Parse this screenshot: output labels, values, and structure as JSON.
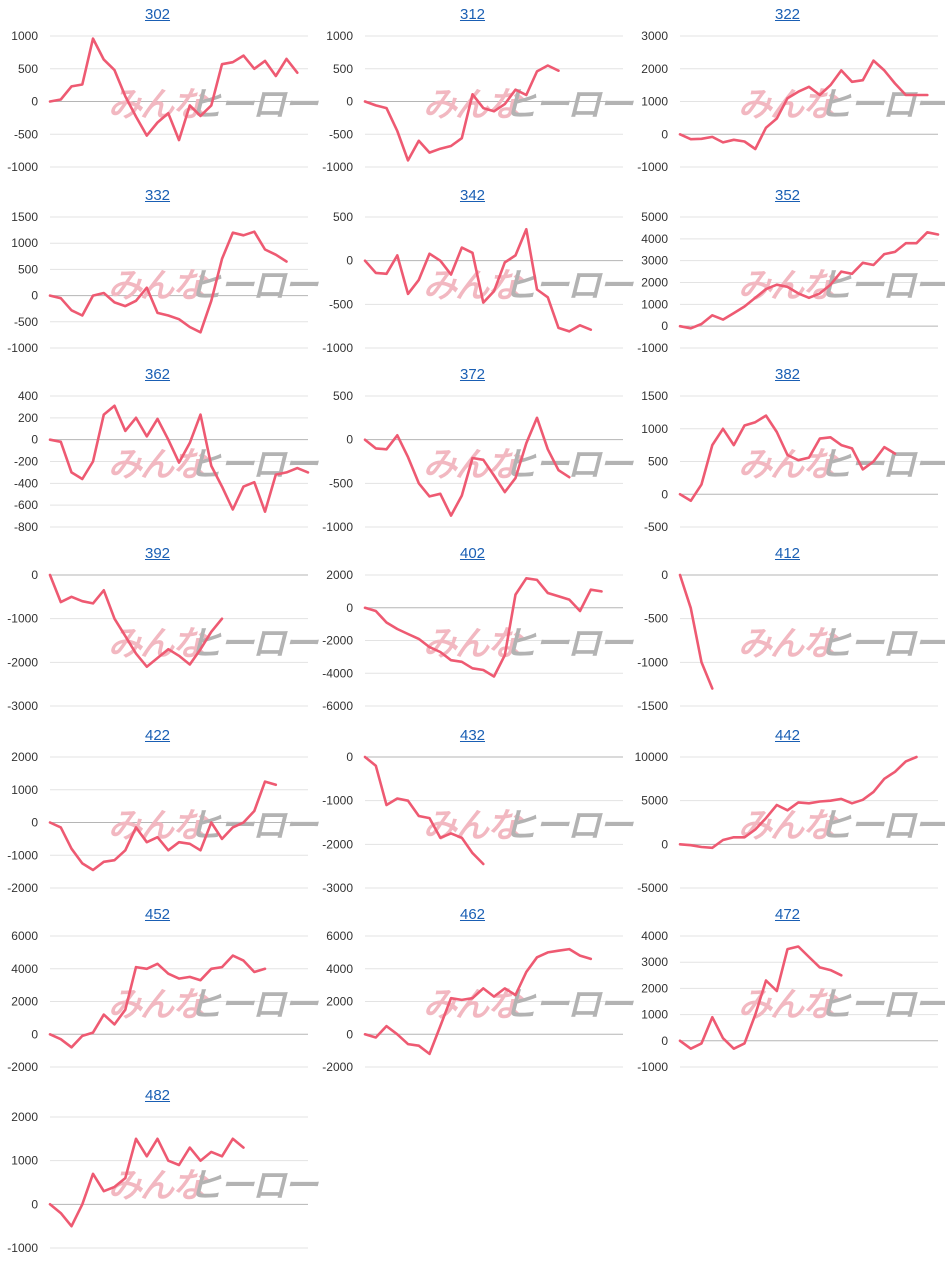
{
  "watermark": {
    "left": "みんな",
    "right": "ヒーロー"
  },
  "style": {
    "line_color": "#ee5a72",
    "grid_color": "#e3e3e3",
    "zero_color": "#b5b5b5",
    "title_color": "#1a5fb4"
  },
  "chart_data": [
    {
      "type": "line",
      "title": "302",
      "yticks": [
        1000,
        500,
        0,
        -500,
        -1000
      ],
      "ylim": [
        -1000,
        1000
      ],
      "x": [
        0,
        1,
        2,
        3,
        4,
        5,
        6,
        7,
        8,
        9,
        10,
        11,
        12,
        13,
        14,
        15,
        16,
        17,
        18,
        19,
        20,
        21,
        22,
        23,
        24
      ],
      "series": [
        {
          "values": [
            0,
            30,
            230,
            260,
            960,
            640,
            480,
            80,
            -230,
            -520,
            -320,
            -180,
            -590,
            -60,
            -220,
            -60,
            570,
            600,
            700,
            500,
            620,
            390,
            650,
            440,
            null
          ]
        }
      ]
    },
    {
      "type": "line",
      "title": "312",
      "yticks": [
        1000,
        500,
        0,
        -500,
        -1000
      ],
      "ylim": [
        -1000,
        1000
      ],
      "x": [
        0,
        1,
        2,
        3,
        4,
        5,
        6,
        7,
        8,
        9,
        10,
        11,
        12,
        13,
        14,
        15,
        16,
        17,
        18,
        19,
        20,
        21,
        22,
        23,
        24
      ],
      "series": [
        {
          "values": [
            0,
            -60,
            -100,
            -450,
            -900,
            -600,
            -780,
            -720,
            -680,
            -560,
            110,
            -100,
            -150,
            -40,
            180,
            100,
            460,
            550,
            470,
            null,
            null,
            null,
            null,
            null,
            null
          ]
        }
      ]
    },
    {
      "type": "line",
      "title": "322",
      "yticks": [
        3000,
        2000,
        1000,
        0,
        -1000
      ],
      "ylim": [
        -1000,
        3000
      ],
      "x": [
        0,
        1,
        2,
        3,
        4,
        5,
        6,
        7,
        8,
        9,
        10,
        11,
        12,
        13,
        14,
        15,
        16,
        17,
        18,
        19,
        20,
        21,
        22,
        23,
        24
      ],
      "series": [
        {
          "values": [
            0,
            -150,
            -140,
            -80,
            -250,
            -170,
            -220,
            -450,
            200,
            480,
            1100,
            1300,
            1450,
            1200,
            1500,
            1950,
            1600,
            1650,
            2250,
            1950,
            1550,
            1200,
            1200,
            1200,
            null
          ]
        }
      ]
    },
    {
      "type": "line",
      "title": "332",
      "yticks": [
        1500,
        1000,
        500,
        0,
        -500,
        -1000
      ],
      "ylim": [
        -1000,
        1500
      ],
      "x": [
        0,
        1,
        2,
        3,
        4,
        5,
        6,
        7,
        8,
        9,
        10,
        11,
        12,
        13,
        14,
        15,
        16,
        17,
        18,
        19,
        20,
        21,
        22,
        23,
        24
      ],
      "series": [
        {
          "values": [
            0,
            -50,
            -280,
            -380,
            0,
            50,
            -130,
            -200,
            -100,
            150,
            -330,
            -380,
            -450,
            -600,
            -700,
            -100,
            700,
            1200,
            1150,
            1220,
            880,
            780,
            650,
            null,
            null
          ]
        }
      ]
    },
    {
      "type": "line",
      "title": "342",
      "yticks": [
        500,
        0,
        -500,
        -1000
      ],
      "ylim": [
        -1000,
        500
      ],
      "x": [
        0,
        1,
        2,
        3,
        4,
        5,
        6,
        7,
        8,
        9,
        10,
        11,
        12,
        13,
        14,
        15,
        16,
        17,
        18,
        19,
        20,
        21,
        22,
        23,
        24
      ],
      "series": [
        {
          "values": [
            0,
            -140,
            -150,
            60,
            -380,
            -220,
            80,
            0,
            -160,
            150,
            90,
            -480,
            -350,
            -20,
            60,
            360,
            -330,
            -420,
            -770,
            -810,
            -740,
            -790,
            null,
            null,
            null
          ]
        }
      ]
    },
    {
      "type": "line",
      "title": "352",
      "yticks": [
        5000,
        4000,
        3000,
        2000,
        1000,
        0,
        -1000
      ],
      "ylim": [
        -1000,
        5000
      ],
      "x": [
        0,
        1,
        2,
        3,
        4,
        5,
        6,
        7,
        8,
        9,
        10,
        11,
        12,
        13,
        14,
        15,
        16,
        17,
        18,
        19,
        20,
        21,
        22,
        23,
        24
      ],
      "series": [
        {
          "values": [
            0,
            -100,
            100,
            500,
            300,
            600,
            900,
            1300,
            1700,
            1900,
            1800,
            1500,
            1300,
            1500,
            1900,
            2500,
            2400,
            2900,
            2800,
            3300,
            3400,
            3800,
            3800,
            4300,
            4200
          ]
        }
      ]
    },
    {
      "type": "line",
      "title": "362",
      "yticks": [
        400,
        200,
        0,
        -200,
        -400,
        -600,
        -800
      ],
      "ylim": [
        -800,
        400
      ],
      "x": [
        0,
        1,
        2,
        3,
        4,
        5,
        6,
        7,
        8,
        9,
        10,
        11,
        12,
        13,
        14,
        15,
        16,
        17,
        18,
        19,
        20,
        21,
        22,
        23,
        24
      ],
      "series": [
        {
          "values": [
            0,
            -20,
            -300,
            -360,
            -200,
            230,
            310,
            80,
            200,
            30,
            190,
            0,
            -210,
            -30,
            230,
            -240,
            -430,
            -640,
            -430,
            -390,
            -660,
            -320,
            -300,
            -260,
            -300
          ]
        }
      ]
    },
    {
      "type": "line",
      "title": "372",
      "yticks": [
        500,
        0,
        -500,
        -1000
      ],
      "ylim": [
        -1000,
        500
      ],
      "x": [
        0,
        1,
        2,
        3,
        4,
        5,
        6,
        7,
        8,
        9,
        10,
        11,
        12,
        13,
        14,
        15,
        16,
        17,
        18,
        19,
        20,
        21,
        22,
        23,
        24
      ],
      "series": [
        {
          "values": [
            0,
            -100,
            -110,
            50,
            -200,
            -500,
            -650,
            -620,
            -870,
            -640,
            -210,
            -230,
            -410,
            -600,
            -440,
            -40,
            250,
            -110,
            -350,
            -430,
            null,
            null,
            null,
            null,
            null
          ]
        }
      ]
    },
    {
      "type": "line",
      "title": "382",
      "yticks": [
        1500,
        1000,
        500,
        0,
        -500
      ],
      "ylim": [
        -500,
        1500
      ],
      "x": [
        0,
        1,
        2,
        3,
        4,
        5,
        6,
        7,
        8,
        9,
        10,
        11,
        12,
        13,
        14,
        15,
        16,
        17,
        18,
        19,
        20,
        21,
        22,
        23,
        24
      ],
      "series": [
        {
          "values": [
            0,
            -100,
            150,
            750,
            1000,
            750,
            1050,
            1100,
            1200,
            950,
            600,
            520,
            560,
            850,
            870,
            750,
            700,
            380,
            500,
            720,
            620,
            null,
            null,
            null,
            null
          ]
        }
      ]
    },
    {
      "type": "line",
      "title": "392",
      "yticks": [
        0,
        -1000,
        -2000,
        -3000
      ],
      "ylim": [
        -3000,
        0
      ],
      "x": [
        0,
        1,
        2,
        3,
        4,
        5,
        6,
        7,
        8,
        9,
        10,
        11,
        12,
        13,
        14,
        15,
        16,
        17,
        18,
        19,
        20,
        21,
        22,
        23,
        24
      ],
      "series": [
        {
          "values": [
            0,
            -620,
            -500,
            -600,
            -650,
            -350,
            -1000,
            -1400,
            -1800,
            -2100,
            -1900,
            -1700,
            -1850,
            -2050,
            -1700,
            -1300,
            -1000,
            null,
            null,
            null,
            null,
            null,
            null,
            null,
            null
          ]
        }
      ]
    },
    {
      "type": "line",
      "title": "402",
      "yticks": [
        2000,
        0,
        -2000,
        -4000,
        -6000
      ],
      "ylim": [
        -6000,
        2000
      ],
      "x": [
        0,
        1,
        2,
        3,
        4,
        5,
        6,
        7,
        8,
        9,
        10,
        11,
        12,
        13,
        14,
        15,
        16,
        17,
        18,
        19,
        20,
        21,
        22,
        23,
        24
      ],
      "series": [
        {
          "values": [
            0,
            -200,
            -900,
            -1300,
            -1600,
            -1900,
            -2400,
            -2700,
            -3200,
            -3300,
            -3700,
            -3800,
            -4200,
            -2900,
            800,
            1800,
            1700,
            900,
            700,
            500,
            -200,
            1100,
            1000,
            null,
            null
          ]
        }
      ]
    },
    {
      "type": "line",
      "title": "412",
      "yticks": [
        0,
        -500,
        -1000,
        -1500
      ],
      "ylim": [
        -1500,
        0
      ],
      "x": [
        0,
        1,
        2,
        3,
        4,
        5,
        6,
        7,
        8,
        9,
        10,
        11,
        12,
        13,
        14,
        15,
        16,
        17,
        18,
        19,
        20,
        21,
        22,
        23,
        24
      ],
      "series": [
        {
          "values": [
            0,
            -380,
            -1000,
            -1300,
            null,
            null,
            null,
            null,
            null,
            null,
            null,
            null,
            null,
            null,
            null,
            null,
            null,
            null,
            null,
            null,
            null,
            null,
            null,
            null,
            null
          ]
        }
      ]
    },
    {
      "type": "line",
      "title": "422",
      "yticks": [
        2000,
        1000,
        0,
        -1000,
        -2000
      ],
      "ylim": [
        -2000,
        2000
      ],
      "x": [
        0,
        1,
        2,
        3,
        4,
        5,
        6,
        7,
        8,
        9,
        10,
        11,
        12,
        13,
        14,
        15,
        16,
        17,
        18,
        19,
        20,
        21,
        22,
        23,
        24
      ],
      "series": [
        {
          "values": [
            0,
            -150,
            -800,
            -1250,
            -1450,
            -1200,
            -1150,
            -850,
            -150,
            -600,
            -450,
            -850,
            -600,
            -650,
            -850,
            0,
            -500,
            -150,
            0,
            350,
            1250,
            1150,
            null,
            null,
            null
          ]
        }
      ]
    },
    {
      "type": "line",
      "title": "432",
      "yticks": [
        0,
        -1000,
        -2000,
        -3000
      ],
      "ylim": [
        -3000,
        0
      ],
      "x": [
        0,
        1,
        2,
        3,
        4,
        5,
        6,
        7,
        8,
        9,
        10,
        11,
        12,
        13,
        14,
        15,
        16,
        17,
        18,
        19,
        20,
        21,
        22,
        23,
        24
      ],
      "series": [
        {
          "values": [
            0,
            -200,
            -1100,
            -950,
            -1000,
            -1350,
            -1400,
            -1850,
            -1750,
            -1850,
            -2200,
            -2450,
            null,
            null,
            null,
            null,
            null,
            null,
            null,
            null,
            null,
            null,
            null,
            null,
            null
          ]
        }
      ]
    },
    {
      "type": "line",
      "title": "442",
      "yticks": [
        10000,
        5000,
        0,
        -5000
      ],
      "ylim": [
        -5000,
        10000
      ],
      "x": [
        0,
        1,
        2,
        3,
        4,
        5,
        6,
        7,
        8,
        9,
        10,
        11,
        12,
        13,
        14,
        15,
        16,
        17,
        18,
        19,
        20,
        21,
        22,
        23,
        24
      ],
      "series": [
        {
          "values": [
            0,
            -100,
            -300,
            -400,
            500,
            800,
            800,
            1700,
            3000,
            4500,
            3900,
            4800,
            4700,
            4900,
            5000,
            5200,
            4700,
            5100,
            6000,
            7500,
            8300,
            9500,
            10000,
            null,
            null
          ]
        }
      ]
    },
    {
      "type": "line",
      "title": "452",
      "yticks": [
        6000,
        4000,
        2000,
        0,
        -2000
      ],
      "ylim": [
        -2000,
        6000
      ],
      "x": [
        0,
        1,
        2,
        3,
        4,
        5,
        6,
        7,
        8,
        9,
        10,
        11,
        12,
        13,
        14,
        15,
        16,
        17,
        18,
        19,
        20,
        21,
        22,
        23,
        24
      ],
      "series": [
        {
          "values": [
            0,
            -300,
            -800,
            -100,
            100,
            1200,
            600,
            1500,
            4100,
            4000,
            4300,
            3700,
            3400,
            3500,
            3300,
            4000,
            4100,
            4800,
            4500,
            3800,
            4000,
            null,
            null,
            null,
            null
          ]
        }
      ]
    },
    {
      "type": "line",
      "title": "462",
      "yticks": [
        6000,
        4000,
        2000,
        0,
        -2000
      ],
      "ylim": [
        -2000,
        6000
      ],
      "x": [
        0,
        1,
        2,
        3,
        4,
        5,
        6,
        7,
        8,
        9,
        10,
        11,
        12,
        13,
        14,
        15,
        16,
        17,
        18,
        19,
        20,
        21,
        22,
        23,
        24
      ],
      "series": [
        {
          "values": [
            0,
            -200,
            500,
            0,
            -600,
            -700,
            -1200,
            500,
            2200,
            2100,
            2200,
            2800,
            2300,
            2800,
            2400,
            3800,
            4700,
            5000,
            5100,
            5200,
            4800,
            4600,
            null,
            null,
            null
          ]
        }
      ]
    },
    {
      "type": "line",
      "title": "472",
      "yticks": [
        4000,
        3000,
        2000,
        1000,
        0,
        -1000
      ],
      "ylim": [
        -1000,
        4000
      ],
      "x": [
        0,
        1,
        2,
        3,
        4,
        5,
        6,
        7,
        8,
        9,
        10,
        11,
        12,
        13,
        14,
        15,
        16,
        17,
        18,
        19,
        20,
        21,
        22,
        23,
        24
      ],
      "series": [
        {
          "values": [
            0,
            -300,
            -100,
            900,
            100,
            -300,
            -100,
            1000,
            2300,
            1900,
            3500,
            3600,
            3200,
            2800,
            2700,
            2500,
            null,
            null,
            null,
            null,
            null,
            null,
            null,
            null,
            null
          ]
        }
      ]
    },
    {
      "type": "line",
      "title": "482",
      "yticks": [
        2000,
        1000,
        0,
        -1000
      ],
      "ylim": [
        -1000,
        2000
      ],
      "x": [
        0,
        1,
        2,
        3,
        4,
        5,
        6,
        7,
        8,
        9,
        10,
        11,
        12,
        13,
        14,
        15,
        16,
        17,
        18,
        19,
        20,
        21,
        22,
        23,
        24
      ],
      "series": [
        {
          "values": [
            0,
            -200,
            -500,
            0,
            700,
            300,
            400,
            600,
            1500,
            1100,
            1500,
            1000,
            900,
            1300,
            1000,
            1200,
            1100,
            1500,
            1300,
            null,
            null,
            null,
            null,
            null,
            null
          ]
        }
      ]
    }
  ]
}
